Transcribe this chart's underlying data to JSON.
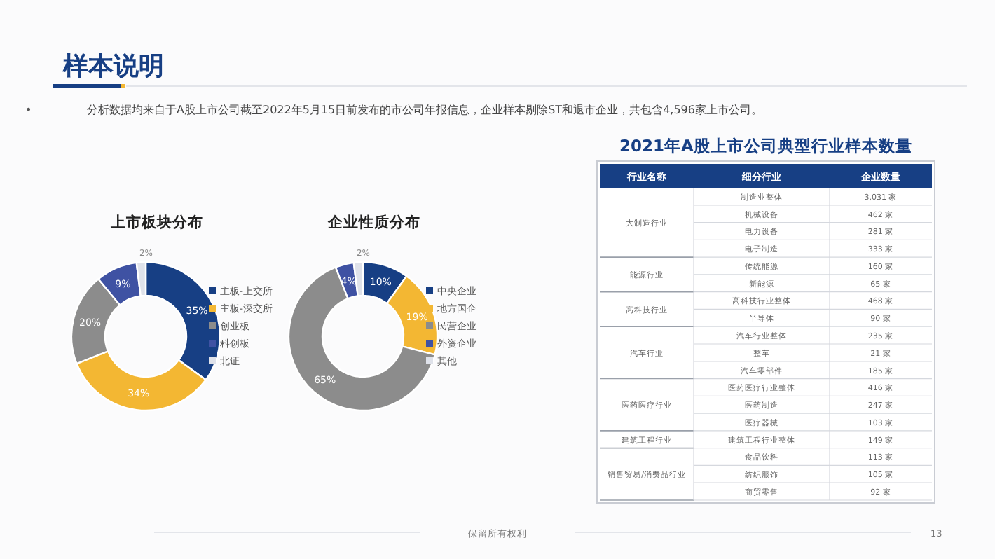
{
  "chart_data": [
    {
      "type": "other",
      "title": "样本说明",
      "annotations": [
        "•",
        "分析数据均来自于A股上市公司截至2022年5月15日前发布的市公司年报信息，企业样本剔除ST和退市企业，共包含4,596家上市公司。",
        "保留所有权利",
        "13"
      ]
    },
    {
      "type": "donut",
      "title": "上市板块分布",
      "categories": [
        "主板-上交所",
        "主板-深交所",
        "创业板",
        "科创板",
        "北证"
      ],
      "values": [
        35,
        34,
        20,
        9,
        2
      ],
      "value_labels": [
        "35%",
        "34%",
        "20%",
        "9%",
        "2%"
      ],
      "colors": [
        "#173f84",
        "#f3b733",
        "#8c8c8c",
        "#3f52a3",
        "#dfe2ea"
      ],
      "legend": "right"
    },
    {
      "type": "donut",
      "title": "企业性质分布",
      "categories": [
        "中央企业",
        "地方国企",
        "民营企业",
        "外资企业",
        "其他"
      ],
      "values": [
        10,
        19,
        65,
        4,
        2
      ],
      "value_labels": [
        "10%",
        "19%",
        "65%",
        "4%",
        "2%"
      ],
      "colors": [
        "#173f84",
        "#f3b733",
        "#8c8c8c",
        "#3f52a3",
        "#dfe2ea"
      ],
      "legend": "right"
    },
    {
      "type": "other",
      "title": "2021年A股上市公司典型行业样本数量",
      "categories": [
        "行业名称",
        "细分行业",
        "企业数量"
      ],
      "y_categories": [
        "制造业整体",
        "机械设备",
        "电力设备",
        "电子制造",
        "传统能源",
        "新能源",
        "高科技行业整体",
        "半导体",
        "汽车行业整体",
        "整车",
        "汽车零部件",
        "医药医疗行业整体",
        "医药制造",
        "医疗器械",
        "建筑工程行业整体",
        "食品饮料",
        "纺织服饰",
        "商贸零售"
      ],
      "y2_categories": [
        "大制造行业",
        null,
        null,
        null,
        "能源行业",
        null,
        "高科技行业",
        null,
        "汽车行业",
        null,
        null,
        "医药医疗行业",
        null,
        null,
        "建筑工程行业",
        "销售贸易/消费品行业",
        null,
        null
      ],
      "cell_labels": [
        [
          "3,031 家"
        ],
        [
          "462 家"
        ],
        [
          "281 家"
        ],
        [
          "333 家"
        ],
        [
          "160 家"
        ],
        [
          "65 家"
        ],
        [
          "468 家"
        ],
        [
          "90 家"
        ],
        [
          "235 家"
        ],
        [
          "21 家"
        ],
        [
          "185 家"
        ],
        [
          "416 家"
        ],
        [
          "247 家"
        ],
        [
          "103 家"
        ],
        [
          "149 家"
        ],
        [
          "113 家"
        ],
        [
          "105 家"
        ],
        [
          "92 家"
        ]
      ]
    }
  ]
}
